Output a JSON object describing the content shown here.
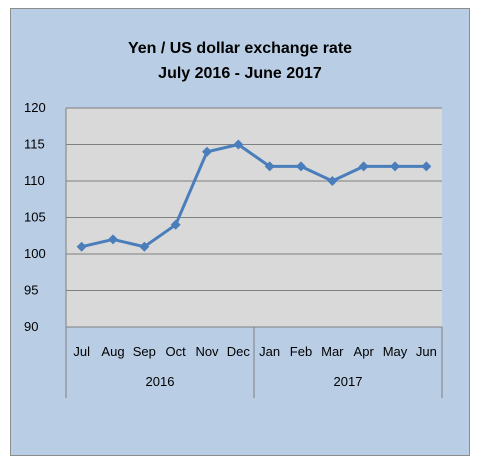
{
  "chart_data": {
    "type": "line",
    "title": "Yen / US dollar exchange rate",
    "subtitle": "July 2016 - June 2017",
    "xlabel": "",
    "ylabel": "",
    "categories": [
      "Jul",
      "Aug",
      "Sep",
      "Oct",
      "Nov",
      "Dec",
      "Jan",
      "Feb",
      "Mar",
      "Apr",
      "May",
      "Jun"
    ],
    "groups": [
      {
        "label": "2016",
        "categories": [
          "Jul",
          "Aug",
          "Sep",
          "Oct",
          "Nov",
          "Dec"
        ]
      },
      {
        "label": "2017",
        "categories": [
          "Jan",
          "Feb",
          "Mar",
          "Apr",
          "May",
          "Jun"
        ]
      }
    ],
    "series": [
      {
        "values": [
          101,
          102,
          101,
          104,
          114,
          115,
          112,
          112,
          110,
          112,
          112,
          112
        ]
      }
    ],
    "ylim": [
      90,
      120
    ],
    "yticks": [
      "90",
      "95",
      "100",
      "105",
      "110",
      "115",
      "120"
    ],
    "grid": true,
    "legend": "none",
    "colors": {
      "line": "#4a7ebb",
      "plot_background": "#d9d9d9",
      "chart_background": "#b9cde5",
      "gridline": "#808080"
    }
  }
}
